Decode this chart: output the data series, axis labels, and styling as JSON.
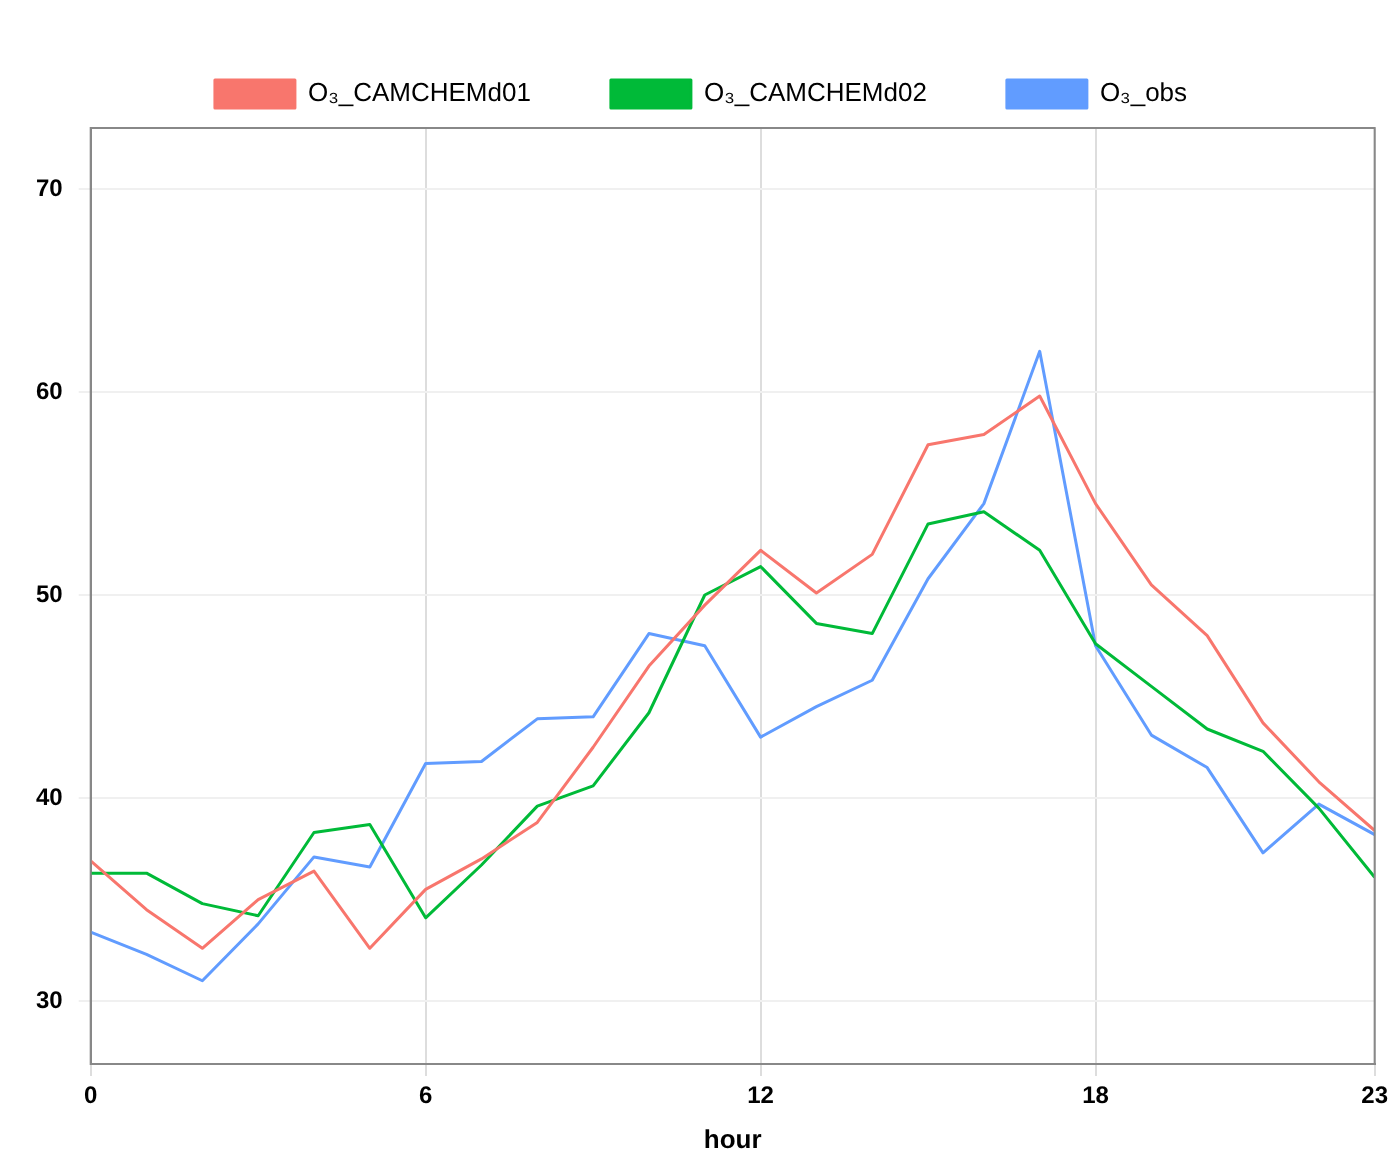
{
  "chart_data": {
    "type": "line",
    "xlabel": "hour",
    "x": [
      0,
      1,
      2,
      3,
      4,
      5,
      6,
      7,
      8,
      9,
      10,
      11,
      12,
      13,
      14,
      15,
      16,
      17,
      18,
      19,
      20,
      21,
      22,
      23
    ],
    "xlim": [
      0,
      23
    ],
    "xticks": [
      0,
      6,
      12,
      18,
      23
    ],
    "ylim": [
      26.9,
      73
    ],
    "yticks": [
      30,
      40,
      50,
      60,
      70
    ],
    "grid": true,
    "legend": "top",
    "marker": "none",
    "line_style": "solid",
    "series": [
      {
        "name": "O₃_CAMCHEMd01",
        "color": "#f8766d",
        "values": [
          36.9,
          34.5,
          32.6,
          35.0,
          36.4,
          32.6,
          35.5,
          37.0,
          38.8,
          42.5,
          46.5,
          49.5,
          52.2,
          50.1,
          52.0,
          57.4,
          57.9,
          59.8,
          54.5,
          50.5,
          48.0,
          43.7,
          40.8,
          38.4
        ]
      },
      {
        "name": "O₃_CAMCHEMd02",
        "color": "#00ba38",
        "values": [
          36.3,
          36.3,
          34.8,
          34.2,
          38.3,
          38.7,
          34.1,
          36.7,
          39.6,
          40.6,
          44.2,
          50.0,
          51.4,
          48.6,
          48.1,
          53.5,
          54.1,
          52.2,
          47.6,
          45.5,
          43.4,
          42.3,
          39.5,
          36.1
        ]
      },
      {
        "name": "O₃_obs",
        "color": "#619cff",
        "values": [
          33.4,
          32.3,
          31.0,
          33.8,
          37.1,
          36.6,
          41.7,
          41.8,
          43.9,
          44.0,
          48.1,
          47.5,
          43.0,
          44.5,
          45.8,
          50.8,
          54.5,
          62.0,
          47.5,
          43.1,
          41.5,
          37.3,
          39.7,
          38.2
        ]
      }
    ]
  }
}
